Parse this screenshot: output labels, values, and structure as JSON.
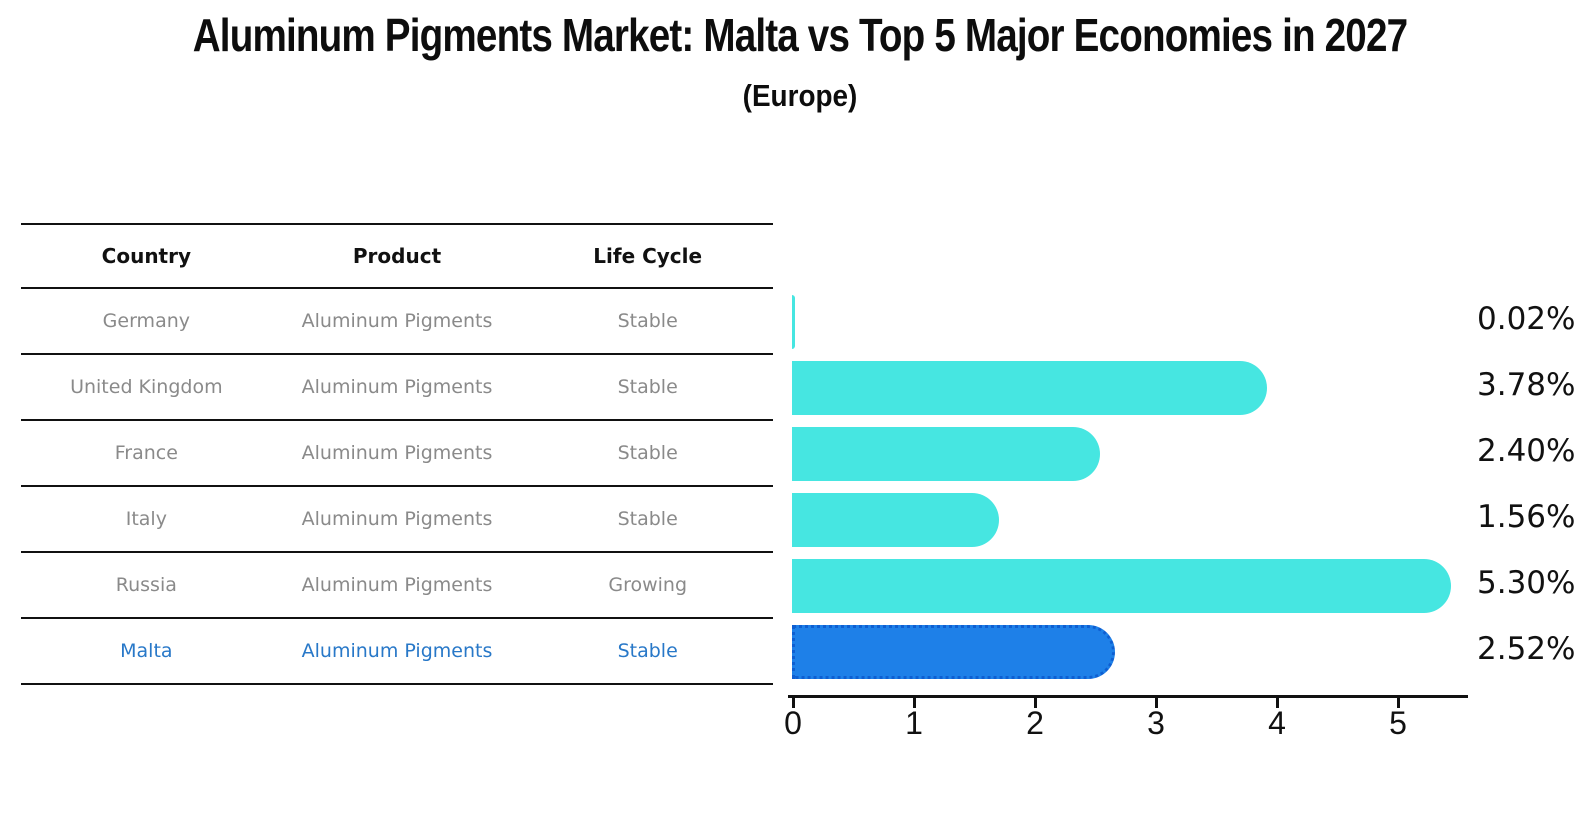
{
  "title": "Aluminum Pigments Market: Malta vs Top 5 Major Economies in 2027",
  "subtitle": "(Europe)",
  "table": {
    "headers": [
      "Country",
      "Product",
      "Life Cycle"
    ],
    "rows": [
      {
        "country": "Germany",
        "product": "Aluminum Pigments",
        "life_cycle": "Stable",
        "highlight": false
      },
      {
        "country": "United Kingdom",
        "product": "Aluminum Pigments",
        "life_cycle": "Stable",
        "highlight": false
      },
      {
        "country": "France",
        "product": "Aluminum Pigments",
        "life_cycle": "Stable",
        "highlight": false
      },
      {
        "country": "Italy",
        "product": "Aluminum Pigments",
        "life_cycle": "Stable",
        "highlight": false
      },
      {
        "country": "Russia",
        "product": "Aluminum Pigments",
        "life_cycle": "Growing",
        "highlight": false
      },
      {
        "country": "Malta",
        "product": "Aluminum Pigments",
        "life_cycle": "Stable",
        "highlight": true
      }
    ]
  },
  "chart_data": {
    "type": "bar",
    "orientation": "horizontal",
    "title": "Aluminum Pigments Market: Malta vs Top 5 Major Economies in 2027 (Europe)",
    "categories": [
      "Germany",
      "United Kingdom",
      "France",
      "Italy",
      "Russia",
      "Malta"
    ],
    "values": [
      0.02,
      3.78,
      2.4,
      1.56,
      5.3,
      2.52
    ],
    "value_labels": [
      "0.02%",
      "3.78%",
      "2.40%",
      "1.56%",
      "5.30%",
      "2.52%"
    ],
    "highlight_index": 5,
    "xticks": [
      "0",
      "1",
      "2",
      "3",
      "4",
      "5"
    ],
    "xlim": [
      0,
      5.6
    ],
    "grid": false,
    "legend": false
  },
  "colors": {
    "bar": "#46e6e1",
    "highlight_bar": "#1e80e8",
    "highlight_border": "#0e5fd2",
    "highlight_text": "#2878c8",
    "table_text": "#8a8a8a",
    "header_text": "#111111",
    "axis": "#111111"
  }
}
